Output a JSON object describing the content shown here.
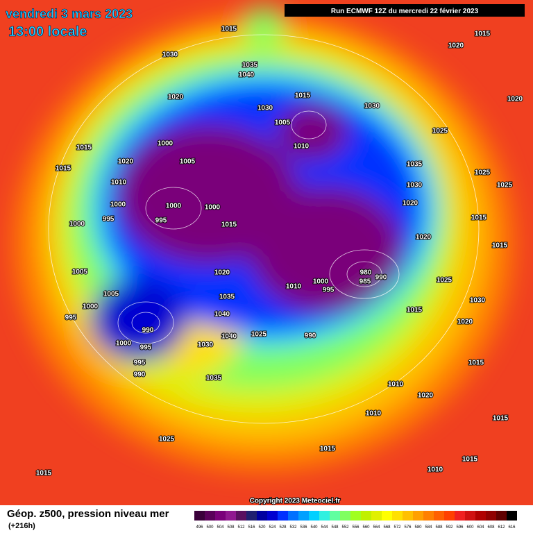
{
  "header": {
    "date": "vendredi 3 mars 2023",
    "time": "13:00 locale",
    "run": "Run ECMWF 12Z du mercredi 22 février 2023"
  },
  "map": {
    "pressure_labels": [
      1015,
      1030,
      1035,
      1040,
      1020,
      1015,
      1030,
      1030,
      1005,
      1010,
      1000,
      1005,
      1020,
      1010,
      1000,
      995,
      1000,
      995,
      1000,
      1015,
      1015,
      1015,
      1000,
      1005,
      1005,
      1000,
      995,
      990,
      1000,
      995,
      995,
      990,
      1020,
      1035,
      1040,
      1040,
      1025,
      1030,
      1035,
      1010,
      1000,
      995,
      980,
      985,
      990,
      990,
      1015,
      1020,
      1030,
      1025,
      1020,
      1020,
      1030,
      1035,
      1025,
      1025,
      1025,
      1015,
      1015,
      1020,
      1015,
      1020,
      1015,
      1020,
      1015,
      1010,
      1015,
      1025,
      1015,
      1010,
      1015,
      1010
    ],
    "copyright": "Copyright 2023 Meteociel.fr"
  },
  "footer": {
    "title": "Géop. z500, pression niveau mer",
    "lead": "(+216h)"
  },
  "legend": {
    "values": [
      496,
      500,
      504,
      508,
      512,
      516,
      520,
      524,
      528,
      532,
      536,
      540,
      544,
      548,
      552,
      556,
      560,
      564,
      568,
      572,
      576,
      580,
      584,
      588,
      592,
      596,
      600,
      604,
      608,
      612,
      616
    ],
    "colors": [
      "#3a003a",
      "#5a005a",
      "#7a007a",
      "#901890",
      "#5a1060",
      "#202070",
      "#0000a0",
      "#0000d0",
      "#0030ff",
      "#0070ff",
      "#00a0ff",
      "#00d0ff",
      "#30f0e0",
      "#60ffa0",
      "#80ff60",
      "#a0ff20",
      "#c0f000",
      "#e0f000",
      "#ffff00",
      "#ffe000",
      "#ffc000",
      "#ffa000",
      "#ff8000",
      "#ff6000",
      "#ff4000",
      "#f02020",
      "#d01010",
      "#b00000",
      "#900000",
      "#600000",
      "#000000"
    ]
  }
}
